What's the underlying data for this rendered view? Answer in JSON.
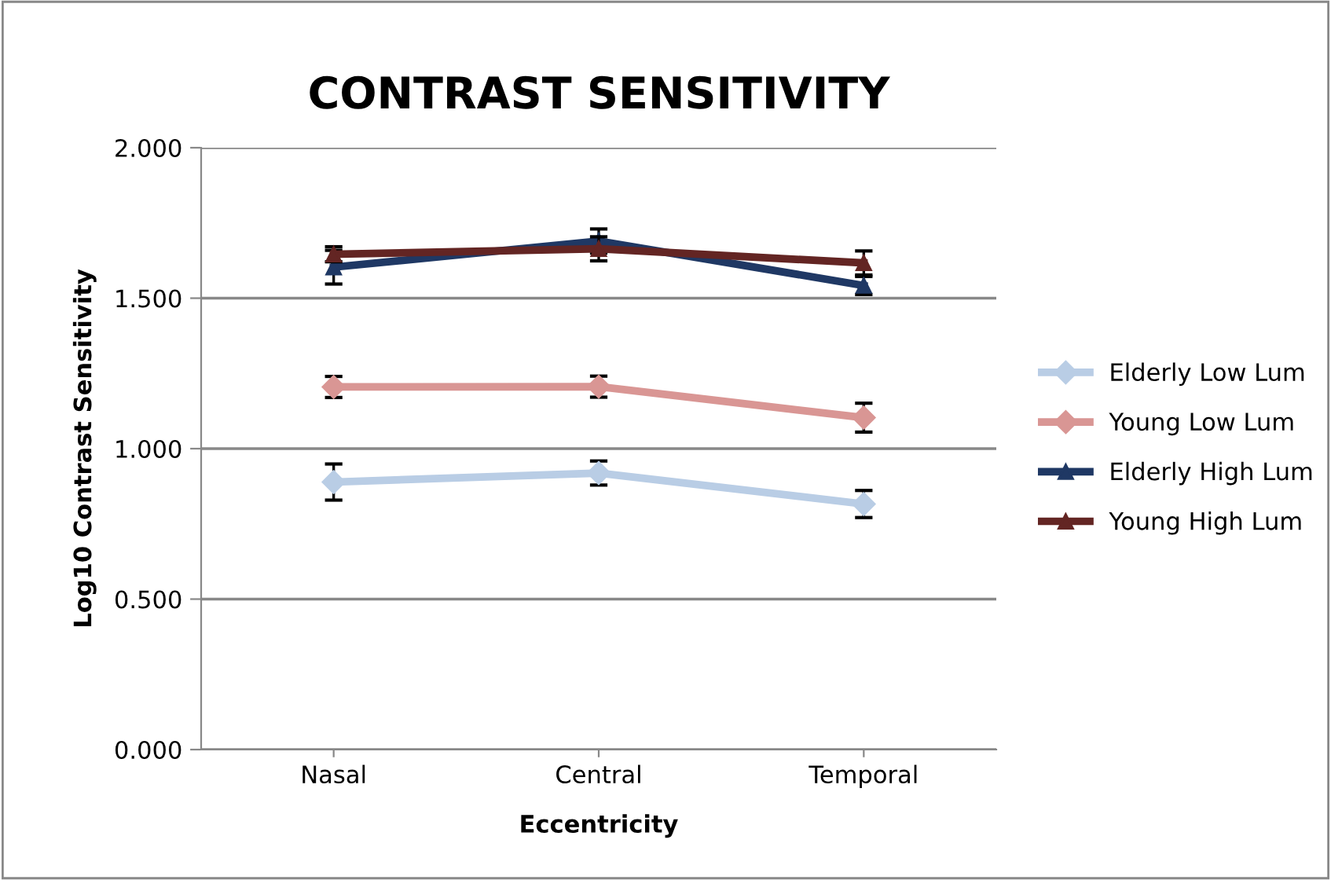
{
  "chart_data": {
    "type": "line",
    "title": "CONTRAST SENSITIVITY",
    "xlabel": "Eccentricity",
    "ylabel": "Log10 Contrast Sensitivity",
    "categories": [
      "Nasal",
      "Central",
      "Temporal"
    ],
    "series": [
      {
        "name": "Elderly Low Lum",
        "color": "#b9cde5",
        "marker": "diamond",
        "values": [
          0.889,
          0.919,
          0.816
        ],
        "errors": [
          0.06,
          0.04,
          0.045
        ]
      },
      {
        "name": "Young Low Lum",
        "color": "#d99694",
        "marker": "diamond",
        "values": [
          1.205,
          1.206,
          1.103
        ],
        "errors": [
          0.035,
          0.035,
          0.048
        ]
      },
      {
        "name": "Elderly High Lum",
        "color": "#1f3864",
        "marker": "triangle",
        "values": [
          1.603,
          1.69,
          1.542
        ],
        "errors": [
          0.056,
          0.04,
          0.03
        ]
      },
      {
        "name": "Young High Lum",
        "color": "#632523",
        "marker": "triangle",
        "values": [
          1.646,
          1.664,
          1.617
        ],
        "errors": [
          0.025,
          0.04,
          0.04
        ]
      }
    ],
    "ylim": [
      0,
      2
    ],
    "yticks": [
      {
        "value": 0,
        "label": "0.000"
      },
      {
        "value": 0.5,
        "label": "0.500"
      },
      {
        "value": 1,
        "label": "1.000"
      },
      {
        "value": 1.5,
        "label": "1.500"
      },
      {
        "value": 2,
        "label": "2.000"
      }
    ],
    "grid": "y",
    "legend": "right"
  }
}
